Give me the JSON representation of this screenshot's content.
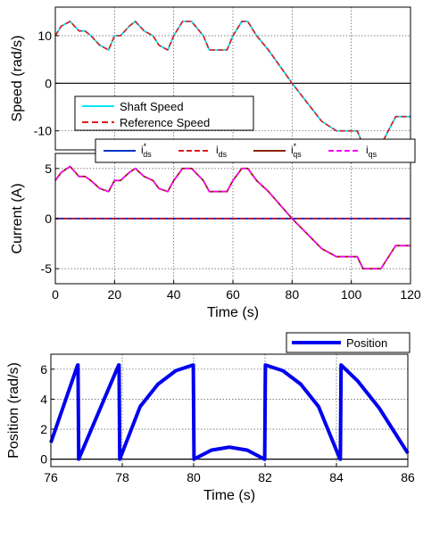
{
  "chart_data": [
    {
      "type": "line",
      "ylabel": "Speed (rad/s)",
      "xlim": [
        0,
        120
      ],
      "ylim": [
        -14,
        16
      ],
      "yticks": [
        10,
        0,
        -10
      ],
      "grid": true,
      "legend_placement": "bottom-left",
      "series": [
        {
          "name": "Shaft Speed",
          "color": "#00e5ff",
          "x": [
            0,
            2,
            5,
            8,
            10,
            12,
            15,
            18,
            20,
            22,
            25,
            27,
            30,
            33,
            35,
            38,
            40,
            43,
            46,
            50,
            52,
            55,
            58,
            60,
            63,
            65,
            68,
            72,
            80,
            85,
            90,
            95,
            100,
            102,
            104,
            105,
            108,
            110,
            115,
            120
          ],
          "y": [
            10,
            12,
            13,
            11,
            11,
            10,
            8,
            7,
            10,
            10,
            12,
            13,
            11,
            10,
            8,
            7,
            10,
            13,
            13,
            10,
            7,
            7,
            7,
            10,
            13,
            13,
            10,
            7,
            0,
            -4,
            -8,
            -10,
            -10,
            -10,
            -13,
            -13,
            -13,
            -13,
            -7,
            -7
          ]
        },
        {
          "name": "Reference Speed",
          "color": "#e31a1c",
          "x": [
            0,
            2,
            5,
            8,
            10,
            12,
            15,
            18,
            20,
            22,
            25,
            27,
            30,
            33,
            35,
            38,
            40,
            43,
            46,
            50,
            52,
            55,
            58,
            60,
            63,
            65,
            68,
            72,
            80,
            85,
            90,
            95,
            100,
            102,
            104,
            105,
            108,
            110,
            115,
            120
          ],
          "y": [
            10,
            12,
            13,
            11,
            11,
            10,
            8,
            7,
            10,
            10,
            12,
            13,
            11,
            10,
            8,
            7,
            10,
            13,
            13,
            10,
            7,
            7,
            7,
            10,
            13,
            13,
            10,
            7,
            0,
            -4,
            -8,
            -10,
            -10,
            -10,
            -13,
            -13,
            -13,
            -13,
            -7,
            -7
          ]
        }
      ]
    },
    {
      "type": "line",
      "ylabel": "Current (A)",
      "xlabel": "Time (s)",
      "xlim": [
        0,
        120
      ],
      "ylim": [
        -6.5,
        6.5
      ],
      "yticks": [
        5,
        0,
        -5
      ],
      "xticks": [
        0,
        20,
        40,
        60,
        80,
        100,
        120
      ],
      "grid": true,
      "legend_placement": "top",
      "series": [
        {
          "name": "i*ds",
          "color": "#0033cc",
          "x": [
            0,
            120
          ],
          "y": [
            0,
            0
          ]
        },
        {
          "name": "ids",
          "color": "#e31a1c",
          "x": [
            0,
            120
          ],
          "y": [
            0,
            0
          ]
        },
        {
          "name": "i*qs",
          "color": "#8b2500",
          "x": [
            0,
            2,
            5,
            8,
            10,
            12,
            15,
            18,
            20,
            22,
            25,
            27,
            30,
            33,
            35,
            38,
            40,
            43,
            46,
            50,
            52,
            55,
            58,
            60,
            63,
            65,
            68,
            72,
            80,
            85,
            90,
            95,
            100,
            102,
            104,
            105,
            108,
            110,
            115,
            120
          ],
          "y": [
            3.8,
            4.6,
            5.2,
            4.2,
            4.2,
            3.8,
            3.0,
            2.7,
            3.8,
            3.8,
            4.6,
            5.0,
            4.2,
            3.8,
            3.0,
            2.7,
            3.8,
            5.0,
            5.0,
            3.8,
            2.7,
            2.7,
            2.7,
            3.8,
            5.0,
            5.0,
            3.8,
            2.7,
            0,
            -1.5,
            -3.0,
            -3.8,
            -3.8,
            -3.8,
            -5.0,
            -5.0,
            -5.0,
            -5.0,
            -2.7,
            -2.7
          ]
        },
        {
          "name": "iqs",
          "color": "#ff00ff",
          "x": [
            0,
            2,
            5,
            8,
            10,
            12,
            15,
            18,
            20,
            22,
            25,
            27,
            30,
            33,
            35,
            38,
            40,
            43,
            46,
            50,
            52,
            55,
            58,
            60,
            63,
            65,
            68,
            72,
            80,
            85,
            90,
            95,
            100,
            102,
            104,
            105,
            108,
            110,
            115,
            120
          ],
          "y": [
            3.8,
            4.6,
            5.2,
            4.2,
            4.2,
            3.8,
            3.0,
            2.7,
            3.8,
            3.8,
            4.6,
            5.0,
            4.2,
            3.8,
            3.0,
            2.7,
            3.8,
            5.0,
            5.0,
            3.8,
            2.7,
            2.7,
            2.7,
            3.8,
            5.0,
            5.0,
            3.8,
            2.7,
            0,
            -1.5,
            -3.0,
            -3.8,
            -3.8,
            -3.8,
            -5.0,
            -5.0,
            -5.0,
            -5.0,
            -2.7,
            -2.7
          ]
        }
      ]
    },
    {
      "type": "line",
      "ylabel": "Position (rad/s)",
      "xlabel": "Time (s)",
      "xlim": [
        76,
        86
      ],
      "ylim": [
        -0.5,
        7
      ],
      "yticks": [
        0,
        2,
        4,
        6
      ],
      "xticks": [
        76,
        78,
        80,
        82,
        84,
        86
      ],
      "grid": true,
      "legend_placement": "top-right",
      "series": [
        {
          "name": "Position",
          "color": "#0000ee",
          "x": [
            76.0,
            76.75,
            76.76,
            76.78,
            77.9,
            77.91,
            77.93,
            78.5,
            79.0,
            79.5,
            79.98,
            79.99,
            80.01,
            80.5,
            81.0,
            81.5,
            81.98,
            81.99,
            82.01,
            82.5,
            83.0,
            83.5,
            84.1,
            84.11,
            84.13,
            84.6,
            85.2,
            86.0
          ],
          "y": [
            1.1,
            6.28,
            6.28,
            0,
            6.28,
            6.28,
            0,
            3.5,
            5.0,
            5.9,
            6.28,
            6.28,
            0,
            0.6,
            0.8,
            0.6,
            0,
            0,
            6.28,
            5.9,
            5.0,
            3.5,
            0,
            0,
            6.28,
            5.2,
            3.4,
            0.4
          ]
        }
      ]
    }
  ]
}
